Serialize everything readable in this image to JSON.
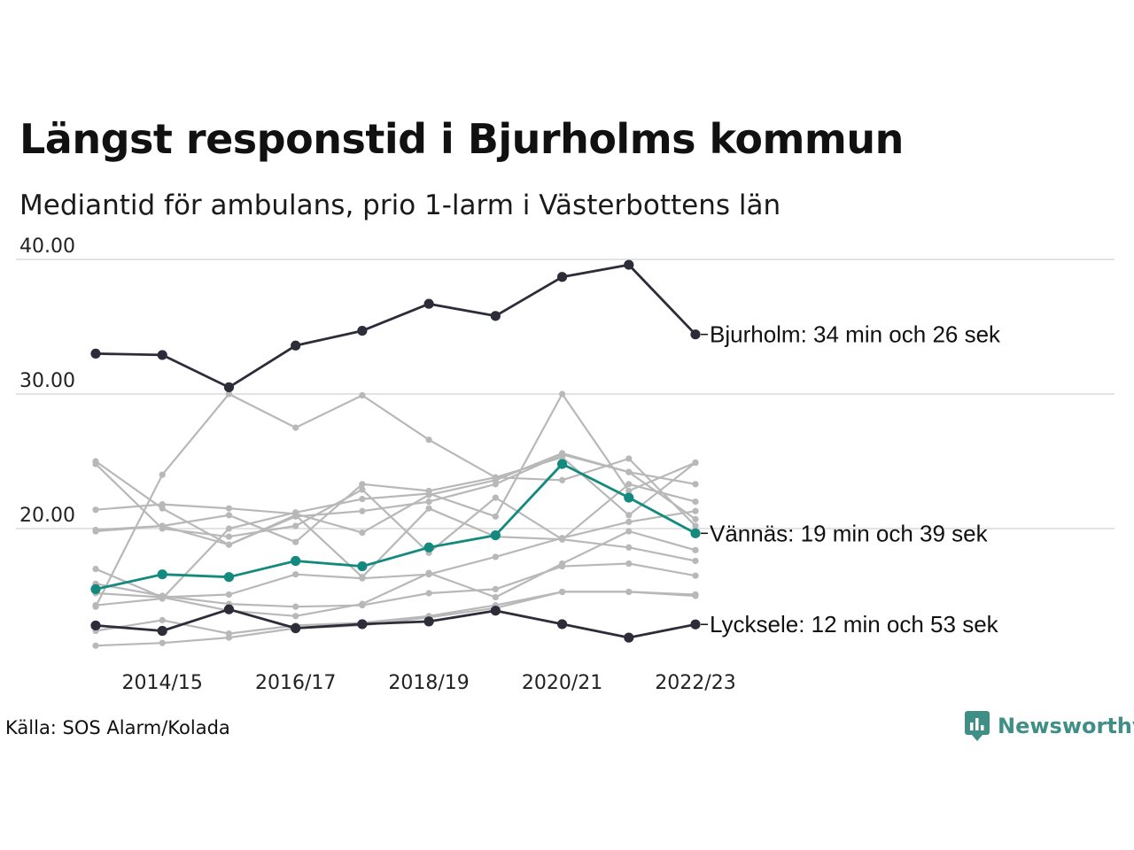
{
  "header": {
    "title": "Längst responstid i Bjurholms kommun",
    "subtitle": "Mediantid för ambulans, prio 1-larm i Västerbottens län"
  },
  "footer": {
    "source": "Källa: SOS Alarm/Kolada",
    "logo_text": "Newsworthy"
  },
  "colors": {
    "background": "#ffffff",
    "grid": "#e3e3e3",
    "highlight_dark": "#2d2d3a",
    "highlight_teal": "#138a7d",
    "context": "#b8b8b8",
    "logo": "#3f8f86"
  },
  "chart_data": {
    "type": "line",
    "x": [
      "2013/14",
      "2014/15",
      "2015/16",
      "2016/17",
      "2017/18",
      "2018/19",
      "2019/20",
      "2020/21",
      "2021/22",
      "2022/23"
    ],
    "x_tick_labels": [
      "2014/15",
      "2016/17",
      "2018/19",
      "2020/21",
      "2022/23"
    ],
    "y_ticks": [
      20,
      30,
      40
    ],
    "y_tick_labels": [
      "20.00",
      "30.00",
      "40.00"
    ],
    "ylim": [
      10.3,
      41.5
    ],
    "grid": true,
    "series": [
      {
        "name": "Bjurholm",
        "role": "highlight_dark",
        "label": "Bjurholm: 34 min och 26 sek",
        "values": [
          33.0,
          32.9,
          30.5,
          33.6,
          34.7,
          36.7,
          35.8,
          38.7,
          39.6,
          34.43
        ]
      },
      {
        "name": "Vännäs",
        "role": "highlight_teal",
        "label": "Vännäs: 19 min och 39 sek",
        "values": [
          15.5,
          16.6,
          16.4,
          17.6,
          17.2,
          18.6,
          19.5,
          24.8,
          22.3,
          19.65
        ]
      },
      {
        "name": "Lycksele",
        "role": "highlight_dark",
        "label": "Lycksele: 12 min och 53 sek",
        "values": [
          12.8,
          12.4,
          14.0,
          12.6,
          12.9,
          13.1,
          13.9,
          12.9,
          11.9,
          12.88
        ]
      },
      {
        "name": "",
        "role": "context",
        "values": [
          14.2,
          24.0,
          30.0,
          27.5,
          29.9,
          26.6,
          23.8,
          25.3,
          21.0,
          24.9
        ]
      },
      {
        "name": "",
        "role": "context",
        "values": [
          25.0,
          21.5,
          18.8,
          21.0,
          16.4,
          21.5,
          19.4,
          19.2,
          18.6,
          17.6
        ]
      },
      {
        "name": "",
        "role": "context",
        "values": [
          24.8,
          20.0,
          19.4,
          20.2,
          22.9,
          18.2,
          22.3,
          19.2,
          23.3,
          22.0
        ]
      },
      {
        "name": "",
        "role": "context",
        "values": [
          14.3,
          14.8,
          20.0,
          21.2,
          22.2,
          22.6,
          20.9,
          30.0,
          22.8,
          24.9
        ]
      },
      {
        "name": "",
        "role": "context",
        "values": [
          21.4,
          21.8,
          21.5,
          21.1,
          19.7,
          22.5,
          23.6,
          25.6,
          24.2,
          20.7
        ]
      },
      {
        "name": "",
        "role": "context",
        "values": [
          19.9,
          20.2,
          21.0,
          19.0,
          23.3,
          22.8,
          23.8,
          23.6,
          25.2,
          20.2
        ]
      },
      {
        "name": "",
        "role": "context",
        "values": [
          19.8,
          20.2,
          18.8,
          20.9,
          21.3,
          22.0,
          23.3,
          25.5,
          24.2,
          23.3
        ]
      },
      {
        "name": "",
        "role": "context",
        "values": [
          17.0,
          14.9,
          15.1,
          16.6,
          16.3,
          16.6,
          17.9,
          19.3,
          20.5,
          21.3
        ]
      },
      {
        "name": "",
        "role": "context",
        "values": [
          15.9,
          15.0,
          14.4,
          14.2,
          14.3,
          15.2,
          15.5,
          17.2,
          17.4,
          16.5
        ]
      },
      {
        "name": "",
        "role": "context",
        "values": [
          15.2,
          14.9,
          13.9,
          13.5,
          14.4,
          16.7,
          14.9,
          17.4,
          19.8,
          18.4
        ]
      },
      {
        "name": "",
        "role": "context",
        "values": [
          12.4,
          13.2,
          12.2,
          12.8,
          13.0,
          13.5,
          14.3,
          15.3,
          15.3,
          15.1
        ]
      },
      {
        "name": "",
        "role": "context",
        "values": [
          11.3,
          11.5,
          11.9,
          12.6,
          12.8,
          13.4,
          14.1,
          15.3,
          15.3,
          15.0
        ]
      }
    ]
  }
}
